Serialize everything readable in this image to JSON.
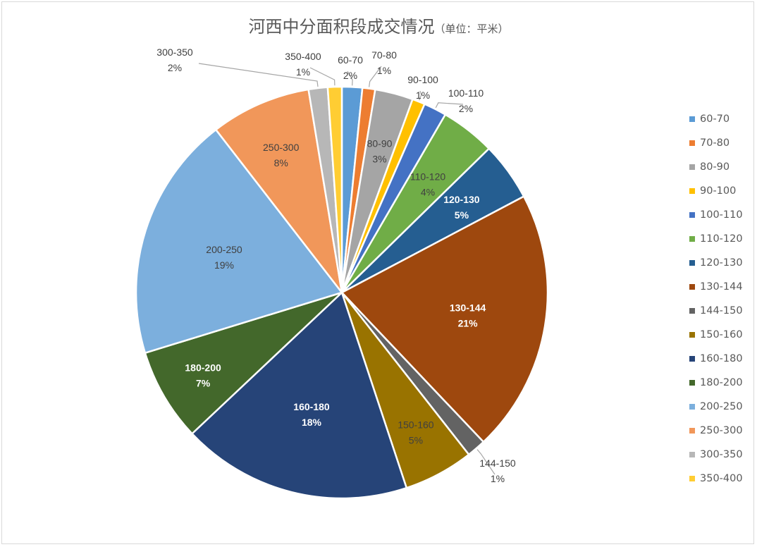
{
  "title": "河西中分面积段成交情况",
  "unit": "（单位：平米）",
  "chart_data": {
    "type": "pie",
    "title": "河西中分面积段成交情况（单位：平米）",
    "legend_position": "right",
    "slices": [
      {
        "label": "60-70",
        "pct": "2%",
        "value": 1.6,
        "color": "#5b9bd5"
      },
      {
        "label": "70-80",
        "pct": "1%",
        "value": 1.0,
        "color": "#ed7d31"
      },
      {
        "label": "80-90",
        "pct": "3%",
        "value": 3.0,
        "color": "#a5a5a5"
      },
      {
        "label": "90-100",
        "pct": "1%",
        "value": 1.0,
        "color": "#ffc000"
      },
      {
        "label": "100-110",
        "pct": "2%",
        "value": 1.8,
        "color": "#4472c4"
      },
      {
        "label": "110-120",
        "pct": "4%",
        "value": 4.3,
        "color": "#70ad47"
      },
      {
        "label": "120-130",
        "pct": "5%",
        "value": 4.6,
        "color": "#255e91"
      },
      {
        "label": "130-144",
        "pct": "21%",
        "value": 20.7,
        "color": "#9e480e"
      },
      {
        "label": "144-150",
        "pct": "1%",
        "value": 1.5,
        "color": "#636363"
      },
      {
        "label": "150-160",
        "pct": "5%",
        "value": 5.5,
        "color": "#997300"
      },
      {
        "label": "160-180",
        "pct": "18%",
        "value": 18.1,
        "color": "#264478"
      },
      {
        "label": "180-200",
        "pct": "7%",
        "value": 7.3,
        "color": "#43682b"
      },
      {
        "label": "200-250",
        "pct": "19%",
        "value": 19.3,
        "color": "#7cafdd"
      },
      {
        "label": "250-300",
        "pct": "8%",
        "value": 7.9,
        "color": "#f1975a"
      },
      {
        "label": "300-350",
        "pct": "2%",
        "value": 1.5,
        "color": "#b7b7b7"
      },
      {
        "label": "350-400",
        "pct": "1%",
        "value": 1.1,
        "color": "#ffcd33"
      }
    ]
  }
}
